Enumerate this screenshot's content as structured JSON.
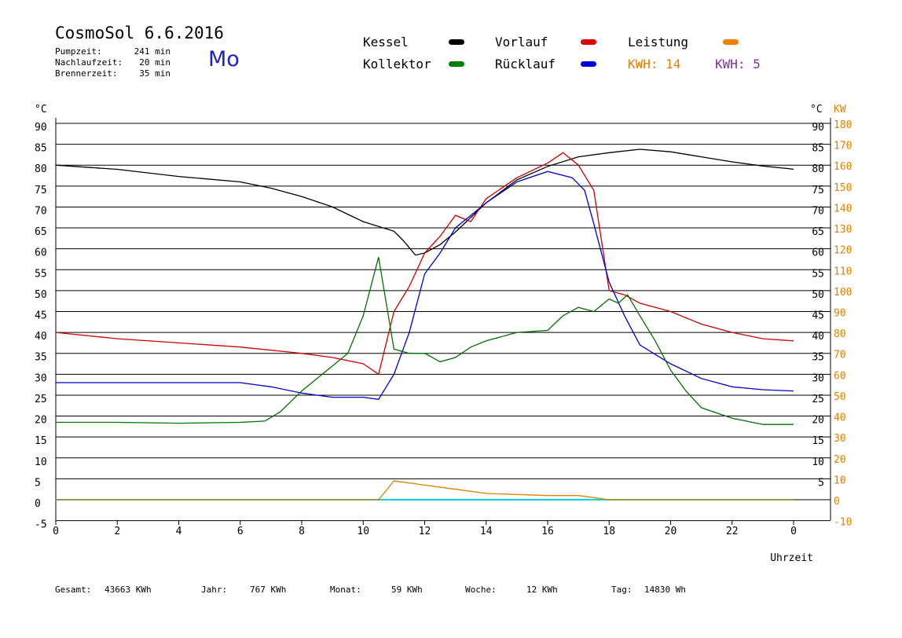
{
  "header": {
    "title": "CosmoSol 6.6.2016",
    "day": "Mo",
    "info": [
      {
        "label": "Pumpzeit:",
        "value": "241 min"
      },
      {
        "label": "Nachlaufzeit:",
        "value": "20 min"
      },
      {
        "label": "Brennerzeit:",
        "value": "35 min"
      }
    ]
  },
  "legend": {
    "kessel": "Kessel",
    "vorlauf": "Vorlauf",
    "leistung": "Leistung",
    "kollektor": "Kollektor",
    "ruecklauf": "Rücklauf",
    "kwh_orange": "KWH: 14",
    "kwh_purple": "KWH: 5"
  },
  "footer": {
    "gesamt_label": "Gesamt:",
    "gesamt_value": "43663 KWh",
    "jahr_label": "Jahr:",
    "jahr_value": "767 KWh",
    "monat_label": "Monat:",
    "monat_value": "59 KWh",
    "woche_label": "Woche:",
    "woche_value": "12 KWh",
    "tag_label": "Tag:",
    "tag_value": "14830 Wh"
  },
  "colors": {
    "kessel": "#000000",
    "vorlauf": "#cc0000",
    "ruecklauf": "#0000cc",
    "kollektor": "#007000",
    "leistung": "#e08000",
    "kwh_purple": "#8030a0",
    "pump": "#00d8e0",
    "right_axis": "#e08000"
  },
  "chart_data": {
    "type": "line",
    "xlabel": "Uhrzeit",
    "ylabel_left": "°C",
    "ylabel_right_c": "°C",
    "ylabel_right_kw": "KW",
    "xlim": [
      0,
      24
    ],
    "ylim": [
      -5,
      90
    ],
    "x_ticks": [
      "0",
      "2",
      "4",
      "6",
      "8",
      "10",
      "12",
      "14",
      "16",
      "18",
      "20",
      "22",
      "0"
    ],
    "y_ticks_left": [
      "90",
      "85",
      "80",
      "75",
      "70",
      "65",
      "60",
      "55",
      "50",
      "45",
      "40",
      "35",
      "30",
      "25",
      "20",
      "15",
      "10",
      "5",
      "0",
      "-5"
    ],
    "y_ticks_right_c": [
      "90",
      "85",
      "80",
      "75",
      "70",
      "65",
      "60",
      "55",
      "50",
      "45",
      "40",
      "35",
      "30",
      "25",
      "20",
      "15",
      "10",
      "5"
    ],
    "y_ticks_right_kw": [
      "180",
      "170",
      "160",
      "150",
      "140",
      "130",
      "120",
      "110",
      "100",
      "90",
      "80",
      "70",
      "60",
      "50",
      "40",
      "30",
      "20",
      "10",
      "0",
      "-10"
    ],
    "series": [
      {
        "name": "Kessel",
        "color": "#000000",
        "x": [
          0,
          2,
          4,
          6,
          7,
          8,
          9,
          10,
          11,
          11.3,
          11.7,
          12,
          12.5,
          13,
          14,
          15,
          16,
          17,
          18,
          19,
          20,
          21,
          22,
          23,
          23.8,
          24
        ],
        "y": [
          80,
          79,
          77.3,
          76,
          74.5,
          72.5,
          70,
          66.5,
          64.2,
          62,
          58.5,
          59,
          61,
          64,
          71,
          76.5,
          79.7,
          82,
          83,
          83.8,
          83.2,
          82,
          80.8,
          79.8,
          79.2,
          79
        ]
      },
      {
        "name": "Vorlauf",
        "color": "#cc0000",
        "x": [
          0,
          2,
          4,
          6,
          8,
          9,
          10,
          10.5,
          11,
          11.5,
          12,
          12.5,
          13,
          13.5,
          14,
          15,
          16,
          16.5,
          17,
          17.5,
          18,
          18.5,
          19,
          20,
          21,
          22,
          23,
          24
        ],
        "y": [
          40,
          38.5,
          37.5,
          36.5,
          35,
          34,
          32.5,
          30,
          45,
          51,
          59,
          63,
          68,
          66.5,
          72,
          77,
          80.5,
          83,
          80,
          74,
          50,
          49,
          47,
          45,
          42,
          40,
          38.5,
          38
        ]
      },
      {
        "name": "Rücklauf",
        "color": "#0000cc",
        "x": [
          0,
          1,
          3,
          5,
          6,
          7,
          8,
          9,
          10,
          10.5,
          11,
          11.5,
          12,
          12.5,
          13,
          14,
          15,
          16,
          16.8,
          17.2,
          17.5,
          18,
          18.5,
          19,
          20,
          21,
          22,
          23,
          24
        ],
        "y": [
          28,
          28,
          28,
          28,
          28,
          27,
          25.5,
          24.5,
          24.5,
          24,
          30,
          40,
          54,
          59,
          65,
          71,
          76,
          78.5,
          77,
          74,
          66,
          52,
          44,
          37,
          32.5,
          29,
          27,
          26.3,
          26
        ]
      },
      {
        "name": "Kollektor",
        "color": "#007000",
        "x": [
          0,
          2,
          4,
          6,
          6.8,
          7.3,
          8,
          9,
          9.5,
          10,
          10.5,
          11,
          11.5,
          12,
          12.5,
          13,
          13.5,
          14,
          15,
          16,
          16.5,
          17,
          17.5,
          18,
          18.3,
          18.6,
          19,
          19.5,
          20,
          20.5,
          21,
          22,
          23,
          24
        ],
        "y": [
          18.5,
          18.5,
          18.3,
          18.5,
          18.8,
          21,
          26,
          32,
          35,
          44,
          58,
          36,
          35,
          35,
          33,
          34,
          36.5,
          38,
          40,
          40.5,
          44,
          46,
          45,
          48,
          47,
          49,
          44,
          38,
          31,
          26,
          22,
          19.5,
          18,
          18
        ]
      },
      {
        "name": "Leistung",
        "color": "#e08000",
        "x": [
          0,
          10.5,
          11,
          12,
          13,
          14,
          16,
          17,
          18,
          24
        ],
        "y": [
          0,
          0,
          4.5,
          3.5,
          2.5,
          1.5,
          1,
          1,
          0,
          0
        ]
      }
    ]
  }
}
